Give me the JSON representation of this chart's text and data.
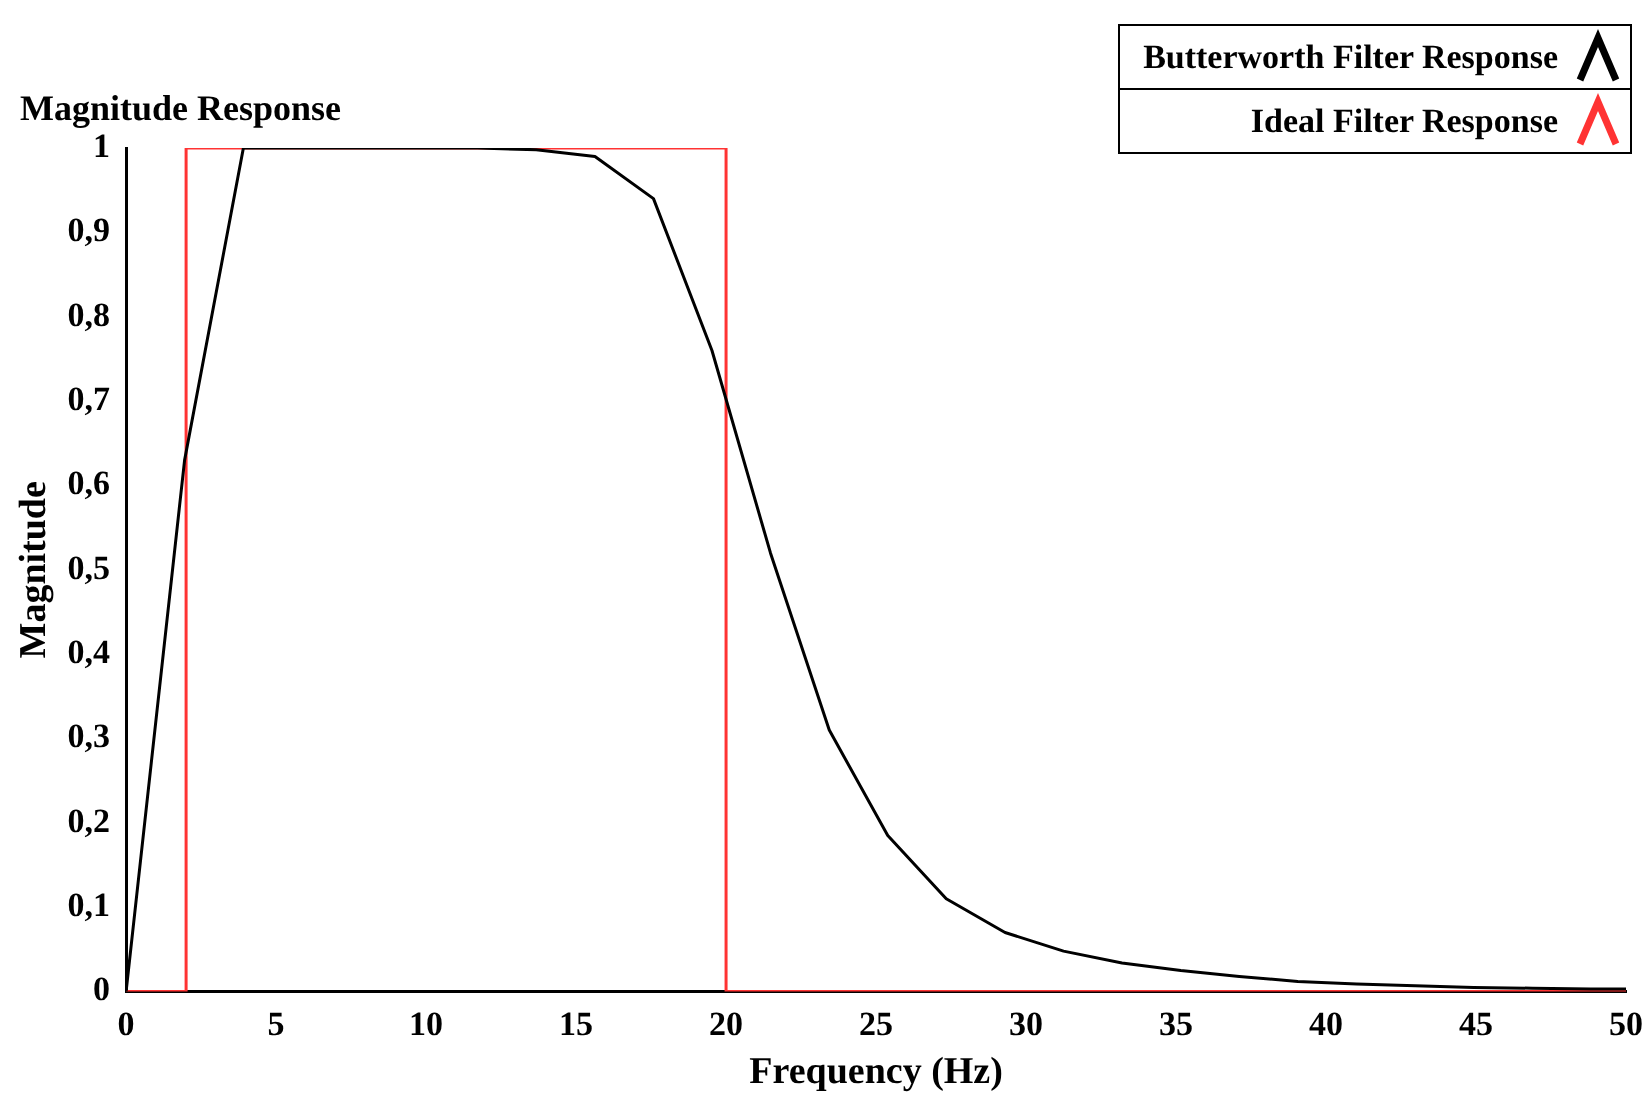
{
  "chart_data": {
    "type": "line",
    "title": "Magnitude Response",
    "xlabel": "Frequency (Hz)",
    "ylabel": "Magnitude",
    "series": [
      {
        "name": "Butterworth Filter Response",
        "color": "#000000",
        "x": [
          0,
          1.95,
          3.91,
          5.86,
          7.81,
          9.77,
          11.72,
          13.67,
          15.63,
          17.58,
          19.53,
          21.48,
          23.44,
          25.39,
          27.34,
          29.3,
          31.25,
          33.2,
          35.16,
          37.11,
          39.06,
          41.02,
          42.97,
          44.92,
          46.88,
          48.83,
          50
        ],
        "values": [
          0,
          0.63,
          1,
          1,
          1,
          1,
          1,
          0.998,
          0.99,
          0.94,
          0.76,
          0.52,
          0.31,
          0.185,
          0.11,
          0.07,
          0.048,
          0.034,
          0.025,
          0.018,
          0.012,
          0.009,
          0.007,
          0.005,
          0.004,
          0.003,
          0.003
        ]
      },
      {
        "name": "Ideal Filter Response",
        "color": "#ff3333",
        "x": [
          0,
          2,
          2,
          20,
          20,
          50
        ],
        "values": [
          0,
          0,
          1,
          1,
          0,
          0
        ]
      }
    ],
    "xlim": [
      0,
      50
    ],
    "xticks": [
      0,
      5,
      10,
      15,
      20,
      25,
      30,
      35,
      40,
      45,
      50
    ],
    "ylim": [
      0,
      1
    ],
    "yticks": [
      0,
      {
        "value": 0.1,
        "label": "0,1"
      },
      {
        "value": 0.2,
        "label": "0,2"
      },
      {
        "value": 0.3,
        "label": "0,3"
      },
      {
        "value": 0.4,
        "label": "0,4"
      },
      {
        "value": 0.5,
        "label": "0,5"
      },
      {
        "value": 0.6,
        "label": "0,6"
      },
      {
        "value": 0.7,
        "label": "0,7"
      },
      {
        "value": 0.8,
        "label": "0,8"
      },
      {
        "value": 0.9,
        "label": "0,9"
      },
      1
    ],
    "grid": false,
    "legend": "top right",
    "marker": "none",
    "line_style": "solid"
  }
}
